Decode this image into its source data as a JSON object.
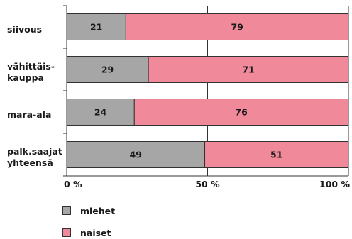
{
  "chart_data": {
    "type": "bar",
    "orientation": "horizontal",
    "stacked": true,
    "categories": [
      "siivous",
      "vähittäis-\nkauppa",
      "mara-ala",
      "palk.saajat\nyhteensä"
    ],
    "series": [
      {
        "name": "miehet",
        "values": [
          21,
          29,
          24,
          49
        ],
        "color": "#a6a6a6"
      },
      {
        "name": "naiset",
        "values": [
          79,
          71,
          76,
          51
        ],
        "color": "#f0899a"
      }
    ],
    "xlim": [
      0,
      100
    ],
    "xticks": [
      0,
      50,
      100
    ],
    "xtick_labels": [
      "0 %",
      "50 %",
      "100 %"
    ],
    "grid": true,
    "legend_position": "bottom-left"
  }
}
